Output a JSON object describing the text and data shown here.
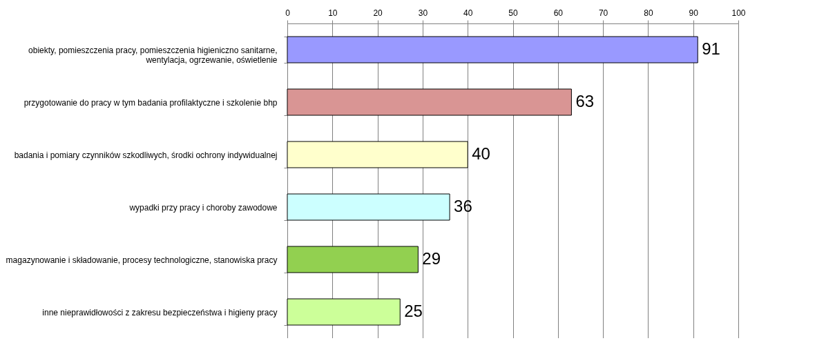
{
  "chart_data": {
    "type": "bar",
    "orientation": "horizontal",
    "categories": [
      "obiekty, pomieszczenia pracy, pomieszczenia higieniczno sanitarne, wentylacja, ogrzewanie, oświetlenie",
      "przygotowanie do pracy w tym badania profilaktyczne i szkolenie bhp",
      "badania i pomiary czynników szkodliwych, środki ochrony indywidualnej",
      "wypadki przy pracy i choroby zawodowe",
      "magazynowanie i składowanie, procesy technologiczne, stanowiska pracy",
      "inne nieprawidłowości z zakresu bezpieczeństwa i higieny pracy"
    ],
    "values": [
      91,
      63,
      40,
      36,
      29,
      25
    ],
    "colors": [
      "#9999ff",
      "#d99594",
      "#ffffcc",
      "#ccffff",
      "#92d050",
      "#ccff99"
    ],
    "xlim": [
      0,
      100
    ],
    "xticks": [
      0,
      10,
      20,
      30,
      40,
      50,
      60,
      70,
      80,
      90,
      100
    ],
    "grid": "x",
    "data_labels": true
  }
}
